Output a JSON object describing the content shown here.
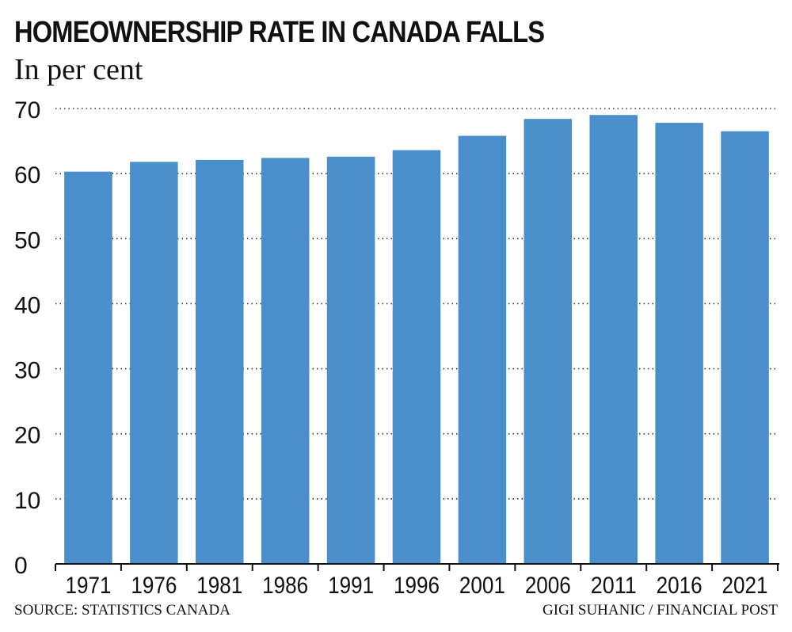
{
  "header": {
    "title": "HOMEOWNERSHIP RATE IN CANADA FALLS",
    "subtitle": "In per cent"
  },
  "footer": {
    "source": "SOURCE: STATISTICS CANADA",
    "credit": "GIGI SUHANIC / FINANCIAL POST"
  },
  "colors": {
    "bar": "#4a8fcb",
    "grid": "#333333",
    "text": "#111111"
  },
  "chart_data": {
    "type": "bar",
    "title": "HOMEOWNERSHIP RATE IN CANADA FALLS",
    "subtitle": "In per cent",
    "categories": [
      "1971",
      "1976",
      "1981",
      "1986",
      "1991",
      "1996",
      "2001",
      "2006",
      "2011",
      "2016",
      "2021"
    ],
    "values": [
      60.3,
      61.8,
      62.1,
      62.4,
      62.6,
      63.6,
      65.8,
      68.4,
      69.0,
      67.8,
      66.5
    ],
    "xlabel": "",
    "ylabel": "",
    "ylim": [
      0,
      70
    ],
    "yticks": [
      0,
      10,
      20,
      30,
      40,
      50,
      60,
      70
    ],
    "grid": "horizontal-dotted",
    "legend": "none"
  }
}
